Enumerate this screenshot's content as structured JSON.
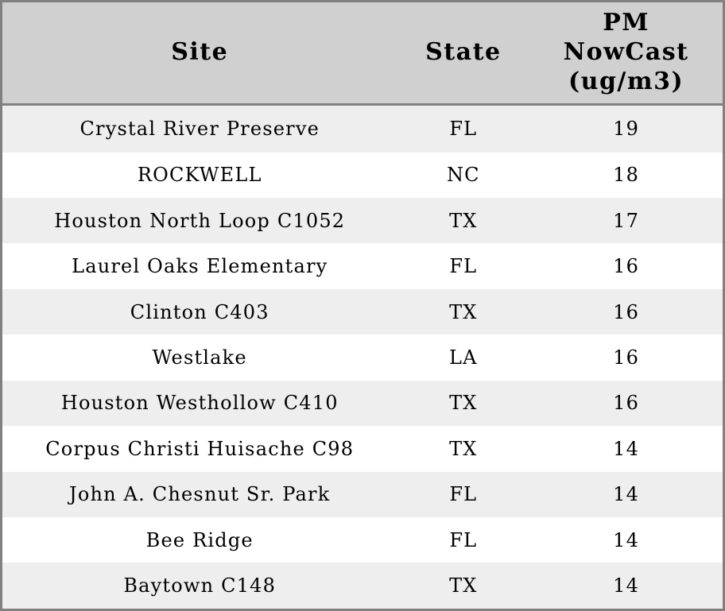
{
  "colors": {
    "header_bg": "#d0d0d0",
    "row_alt_bg": "#eeeeee",
    "row_bg": "#ffffff",
    "border": "#808080",
    "text": "#000000"
  },
  "table": {
    "columns": [
      {
        "key": "site",
        "label": "Site"
      },
      {
        "key": "state",
        "label": "State"
      },
      {
        "key": "pm",
        "label": "PM\nNowCast\n(ug/m3)"
      }
    ],
    "rows": [
      {
        "site": "Crystal River Preserve",
        "state": "FL",
        "pm": "19"
      },
      {
        "site": "ROCKWELL",
        "state": "NC",
        "pm": "18"
      },
      {
        "site": "Houston North Loop C1052",
        "state": "TX",
        "pm": "17"
      },
      {
        "site": "Laurel Oaks Elementary",
        "state": "FL",
        "pm": "16"
      },
      {
        "site": "Clinton C403",
        "state": "TX",
        "pm": "16"
      },
      {
        "site": "Westlake",
        "state": "LA",
        "pm": "16"
      },
      {
        "site": "Houston Westhollow C410",
        "state": "TX",
        "pm": "16"
      },
      {
        "site": "Corpus Christi Huisache C98",
        "state": "TX",
        "pm": "14"
      },
      {
        "site": "John A. Chesnut Sr. Park",
        "state": "FL",
        "pm": "14"
      },
      {
        "site": "Bee Ridge",
        "state": "FL",
        "pm": "14"
      },
      {
        "site": "Baytown C148",
        "state": "TX",
        "pm": "14"
      }
    ]
  },
  "chart_data": {
    "type": "table",
    "title": "",
    "columns": [
      "Site",
      "State",
      "PM NowCast (ug/m3)"
    ],
    "rows": [
      [
        "Crystal River Preserve",
        "FL",
        19
      ],
      [
        "ROCKWELL",
        "NC",
        18
      ],
      [
        "Houston North Loop C1052",
        "TX",
        17
      ],
      [
        "Laurel Oaks Elementary",
        "FL",
        16
      ],
      [
        "Clinton C403",
        "TX",
        16
      ],
      [
        "Westlake",
        "LA",
        16
      ],
      [
        "Houston Westhollow C410",
        "TX",
        16
      ],
      [
        "Corpus Christi Huisache C98",
        "TX",
        14
      ],
      [
        "John A. Chesnut Sr. Park",
        "FL",
        14
      ],
      [
        "Bee Ridge",
        "FL",
        14
      ],
      [
        "Baytown C148",
        "TX",
        14
      ]
    ]
  }
}
